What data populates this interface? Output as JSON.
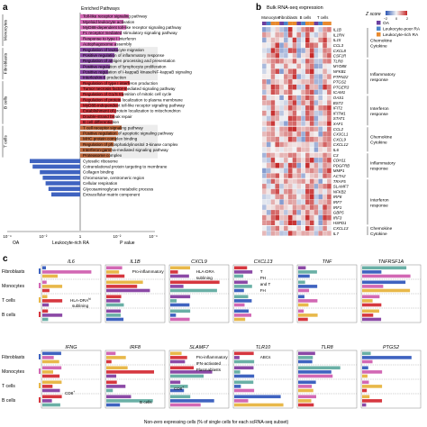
{
  "panel_a": {
    "letter": "a",
    "header": "Enriched Pathways",
    "groups": [
      {
        "name": "Monocytes",
        "color": "#d268b4",
        "pathways": [
          "Toll-like receptor signaling pathway",
          "Myeloid leukocyte activation",
          "MyD88-dependent toll-like receptor signaling pathway",
          "Fc receptor mediated stimulatory signaling pathway",
          "Response to type I interferon",
          "Autophagosome assembly"
        ]
      },
      {
        "name": "Fibroblasts",
        "color": "#8b49a6",
        "pathways": [
          "Regulation of leukocyte migration",
          "Positive regulation of inflammatory response",
          "Regulation of antigen processing and presentation",
          "Positive regulation of lymphocyte proliferation",
          "Positive regulation of I-kappaB kinase/NF-kappaB signaling",
          "Interleukin-6 production"
        ]
      },
      {
        "name": "B cells",
        "color": "#d6373f",
        "pathways": [
          "Regulation of type I interferon production",
          "Tumor necrosis factor-mediated signaling pathway",
          "Regulation of G1/S transition of mitotic cell cycle",
          "Regulation of protein localization to plasma membrane",
          "MyD88-independent toll-like receptor signaling pathway",
          "Establishment of protein localization to mitochondrion",
          "Double-strand break repair",
          "B cell differentiation"
        ]
      },
      {
        "name": "T cells",
        "color": "#c0683c",
        "pathways": [
          "T cell receptor signaling pathway",
          "Positive regulation of apoptotic signaling pathway",
          "MHC protein complex binding",
          "Regulation of phosphatidylinositol 3-kinase complex",
          "Interferon-gamma-mediated signaling pathway",
          "Proteasome complex"
        ]
      },
      {
        "name": "",
        "color": "#3f63c0",
        "pathways": [
          "Cytosolic ribosome",
          "Cotranslational protein targeting to membrane",
          "Collagen binding",
          "Chromosome, centromeric region",
          "Cellular respiration",
          "Glycosaminoglycan metabolic process",
          "Extracellular matrix component"
        ]
      }
    ],
    "x_ticks": [
      "10⁻⁴",
      "10⁻²",
      "1",
      "10⁻²",
      "10⁻⁴"
    ],
    "x_left_label": "OA",
    "x_center_label": "P value",
    "x_right_label": "Leukocyte-rich RA"
  },
  "panel_b": {
    "letter": "b",
    "title": "Bulk RNA-seq expression",
    "col_groups": [
      "Monocytes",
      "Fibroblasts",
      "B cells",
      "T cells"
    ],
    "scale_label": "Z score",
    "scale_ticks": [
      "−2",
      "0",
      "2"
    ],
    "legend": [
      {
        "label": "OA",
        "color": "#6b3fa0"
      },
      {
        "label": "Leukocyte-poor RA",
        "color": "#4a85c9"
      },
      {
        "label": "Leukocyte-rich RA",
        "color": "#e88a2e"
      }
    ],
    "row_blocks": [
      {
        "genes": [
          "IL1B",
          "IL1RN",
          "IL15",
          "CCL3",
          "CXCL8",
          "CSF1R"
        ],
        "category": "Chemokine\nCytokine"
      },
      {
        "genes": [
          "TLR8",
          "MYD88",
          "NFKB1",
          "PTPN22",
          "PTGS2",
          "PTGER3",
          "ICAM1"
        ],
        "category": "Inflammatory\nresponse"
      },
      {
        "genes": [
          "OAS1",
          "BST2",
          "IFIT2",
          "IFITM1",
          "STAT1",
          "XAF1"
        ],
        "category": "Interferon\nresponse"
      },
      {
        "genes": [
          "CCL2",
          "CX3CL1",
          "CXCL9",
          "CXCL12",
          "IL6"
        ],
        "category": "Chemokine\nCytokine"
      },
      {
        "genes": [
          "C3",
          "CDH11",
          "PDGFRB",
          "MMP1",
          "ACTA2"
        ],
        "category": "Inflammatory\nresponse"
      },
      {
        "genes": [
          "TRAF5",
          "SLAMF7",
          "NFKB2",
          "IRF8",
          "IRF7",
          "IRF1",
          "GBP5",
          "IRF3",
          "HSPD1"
        ],
        "category": "Interferon\nresponse"
      },
      {
        "genes": [
          "CXCL13",
          "IL7"
        ],
        "category": "Chemokine\nCytokine"
      }
    ]
  },
  "panel_c": {
    "letter": "c",
    "row_labels": [
      "Fibroblasts",
      "Monocytes",
      "T cells",
      "B cells"
    ],
    "x_axis_label": "Non-zero expressing cells (% of single cells for each scRNA-seq subset)",
    "panels": [
      {
        "gene": "IL6",
        "notes": []
      },
      {
        "gene": "IL1B",
        "notes": [
          "Pro-inflammatory"
        ]
      },
      {
        "gene": "CXCL9",
        "notes": [
          "HLA-DRA",
          "sublining"
        ]
      },
      {
        "gene": "CXCL13",
        "notes": [
          "T",
          "PH",
          "and T",
          "FH"
        ]
      },
      {
        "gene": "TNF",
        "notes": []
      },
      {
        "gene": "TNFRSF1A",
        "notes": []
      },
      {
        "gene": "IFNG",
        "notes": []
      },
      {
        "gene": "IRF8",
        "notes": []
      },
      {
        "gene": "SLAMF7",
        "notes": [
          "Pro-inflammatory",
          "IFN-activated",
          "Plasmablasts"
        ]
      },
      {
        "gene": "TLR10",
        "notes": [
          "ABCs"
        ]
      },
      {
        "gene": "TLR8",
        "notes": []
      },
      {
        "gene": "PTGS2",
        "notes": []
      }
    ],
    "extra_notes": {
      "il6_hla": "HLA-DRA",
      "il6_hla_sup": "hi",
      "il6_sub": "sublining",
      "cxcl9_sup": "hi",
      "ifng_cd8": "CD8",
      "ifng_cd8_sup": "+",
      "slamf7_cd8": "CD8",
      "slamf7_cd8_sup": "+",
      "irf8_bcells": "B cells"
    }
  },
  "colors": {
    "up": "#c62828",
    "down": "#2b55b3",
    "mid": "#f4f4f4"
  }
}
